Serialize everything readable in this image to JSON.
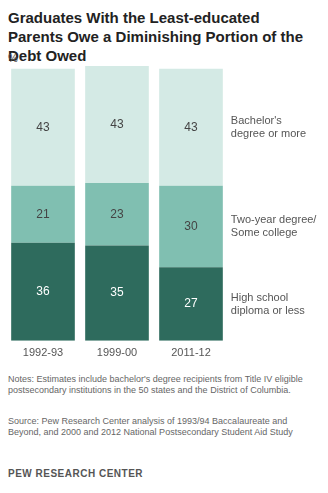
{
  "chart_data": {
    "type": "bar",
    "title": "Graduates With the Least-educated Parents Owe a Diminishing Portion of the Debt Owed",
    "ylabel": "%",
    "categories": [
      "1992-93",
      "1999-00",
      "2011-12"
    ],
    "series": [
      {
        "name": "High school diploma or less",
        "color": "#2e6b5d",
        "values": [
          36,
          35,
          27
        ]
      },
      {
        "name": "Two-year degree/ Some college",
        "color": "#80bfb1",
        "values": [
          21,
          23,
          30
        ]
      },
      {
        "name": "Bachelor's degree or more",
        "color": "#d4eae5",
        "values": [
          43,
          43,
          43
        ]
      }
    ],
    "stacked": true,
    "data_labels": true,
    "tick_labels": "x",
    "grid": false,
    "ylim": [
      0,
      101
    ],
    "notes": "Notes: Estimates include bachelor's degree recipients from Title IV eligible postsecondary institutions in the 50 states and the District of Columbia.",
    "source": "Source: Pew Research Center analysis of 1993/94 Baccalaureate and Beyond, and 2000 and 2012 National Postsecondary Student Aid Study",
    "credit": "PEW RESEARCH CENTER"
  }
}
